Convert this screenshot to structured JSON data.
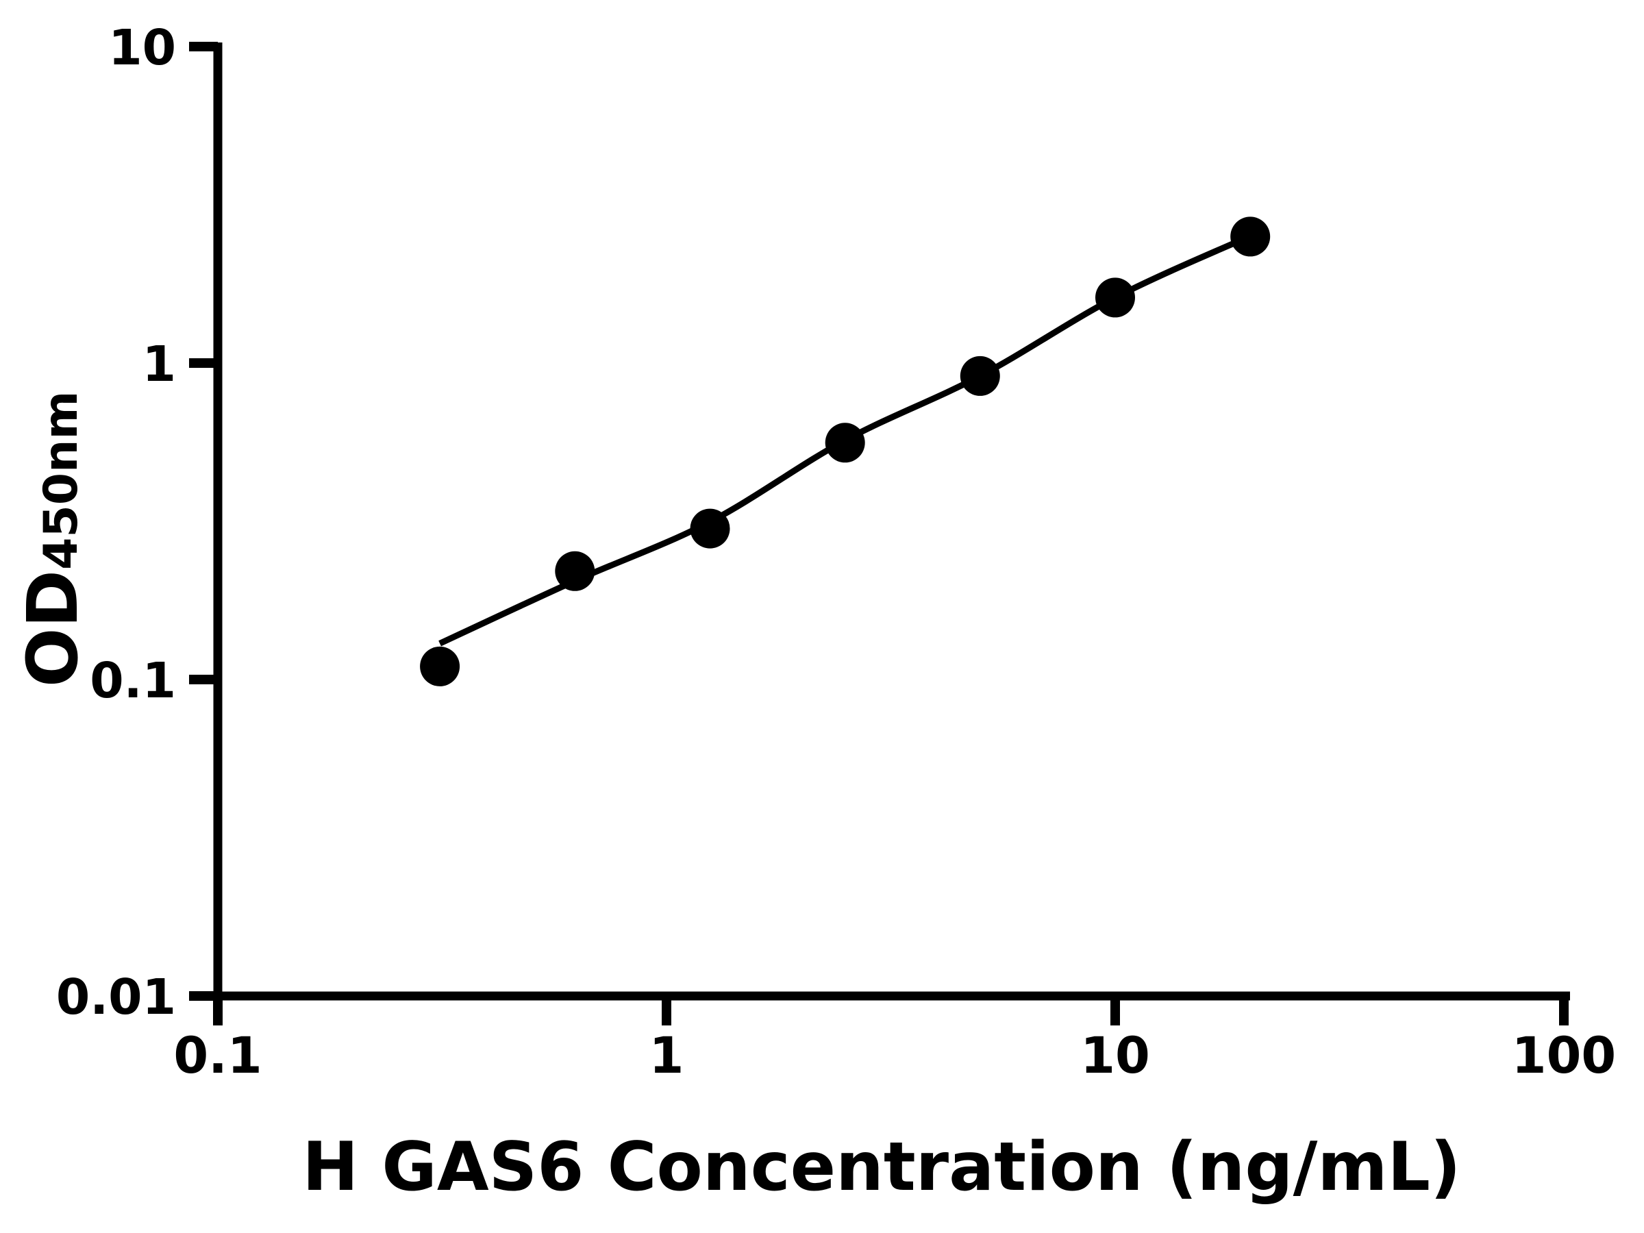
{
  "figure": {
    "background_color": "#ffffff",
    "ink_color": "#000000"
  },
  "chart_data": {
    "type": "scatter",
    "title": "",
    "xlabel": "H GAS6 Concentration (ng/mL)",
    "ylabel": "OD450nm",
    "ylabel_main": "OD",
    "ylabel_sub": "450nm",
    "x_scale": "log",
    "y_scale": "log",
    "xlim": [
      0.1,
      100
    ],
    "ylim": [
      0.01,
      10
    ],
    "grid": false,
    "legend": "none",
    "x_ticks": {
      "values": [
        0.1,
        1,
        10,
        100
      ],
      "labels": [
        "0.1",
        "1",
        "10",
        "100"
      ]
    },
    "y_ticks": {
      "values": [
        10,
        1,
        0.1,
        0.01
      ],
      "labels": [
        "10",
        "1",
        "0.1",
        "0.01"
      ]
    },
    "series": [
      {
        "name": "standard-curve-points",
        "marker": "filled-circle",
        "color": "#000000",
        "x": [
          0.3125,
          0.625,
          1.25,
          2.5,
          5,
          10,
          20
        ],
        "y": [
          0.11,
          0.22,
          0.3,
          0.56,
          0.91,
          1.61,
          2.51
        ]
      }
    ],
    "fit_curve": {
      "name": "fitted-standard-curve",
      "color": "#000000",
      "x": [
        0.3125,
        0.625,
        1.25,
        2.5,
        5,
        10,
        20
      ],
      "y": [
        0.13,
        0.205,
        0.315,
        0.57,
        0.91,
        1.61,
        2.52
      ]
    }
  }
}
